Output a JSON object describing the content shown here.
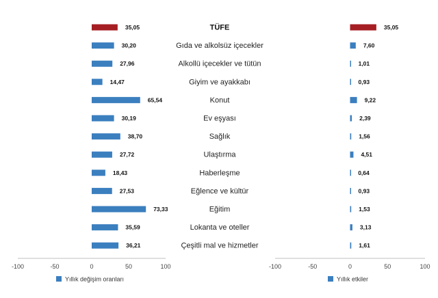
{
  "chart_data": {
    "type": "bar",
    "orientation": "horizontal",
    "categories": [
      "TÜFE",
      "Gıda ve alkolsüz içecekler",
      "Alkollü içecekler ve tütün",
      "Giyim ve ayakkabı",
      "Konut",
      "Ev eşyası",
      "Sağlık",
      "Ulaştırma",
      "Haberleşme",
      "Eğlence ve kültür",
      "Eğitim",
      "Lokanta ve oteller",
      "Çeşitli mal ve hizmetler"
    ],
    "series": [
      {
        "name": "Yıllık değişim oranları",
        "values": [
          35.05,
          30.2,
          27.96,
          14.47,
          65.54,
          30.19,
          38.7,
          27.72,
          18.43,
          27.53,
          73.33,
          35.59,
          36.21
        ],
        "labels": [
          "35,05",
          "30,20",
          "27,96",
          "14,47",
          "65,54",
          "30,19",
          "38,70",
          "27,72",
          "18,43",
          "27,53",
          "73,33",
          "35,59",
          "36,21"
        ],
        "xlim": [
          -100,
          100
        ],
        "ticks": [
          "-100",
          "-50",
          "0",
          "50",
          "100"
        ]
      },
      {
        "name": "Yıllık etkiler",
        "values": [
          35.05,
          7.6,
          1.01,
          0.93,
          9.22,
          2.39,
          1.56,
          4.51,
          0.64,
          0.93,
          1.53,
          3.13,
          1.61
        ],
        "labels": [
          "35,05",
          "7,60",
          "1,01",
          "0,93",
          "9,22",
          "2,39",
          "1,56",
          "4,51",
          "0,64",
          "0,93",
          "1,53",
          "3,13",
          "1,61"
        ],
        "xlim": [
          -100,
          100
        ],
        "ticks": [
          "-100",
          "-50",
          "0",
          "50",
          "100"
        ]
      }
    ],
    "colors": {
      "highlight": "#A51E23",
      "bar": "#3B7FBF"
    }
  }
}
